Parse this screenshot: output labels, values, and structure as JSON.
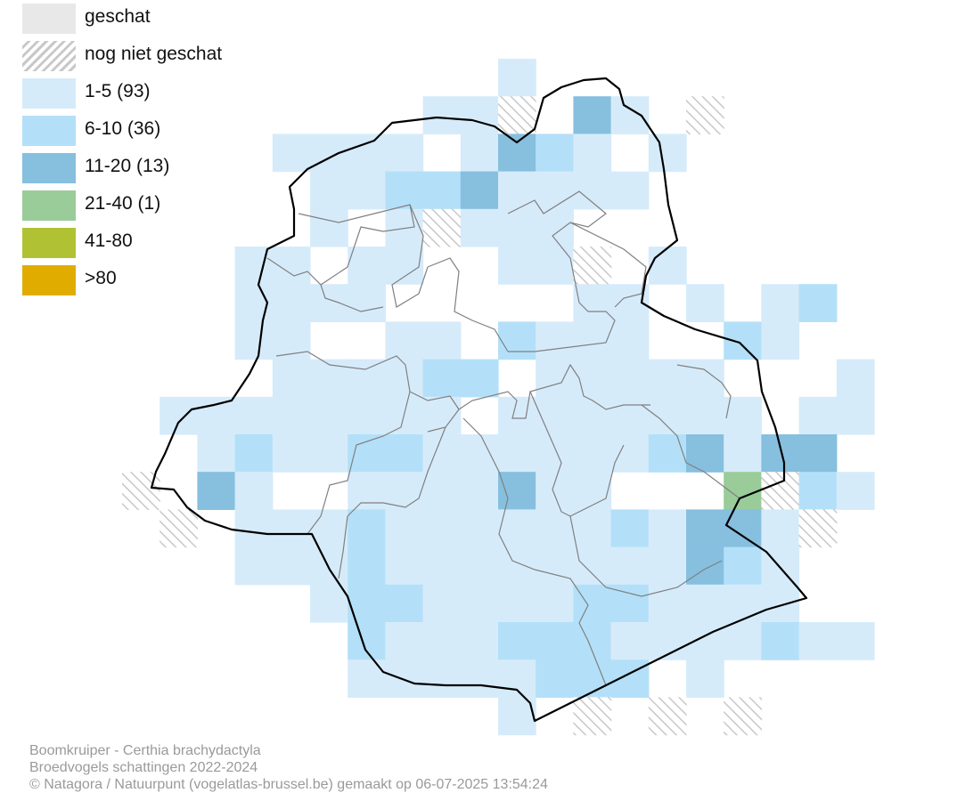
{
  "legend": {
    "items": [
      {
        "label": "geschat",
        "color": "#e8e8e8",
        "style": "solid"
      },
      {
        "label": "nog niet geschat",
        "color": "#c8c8c8",
        "style": "hatched"
      },
      {
        "label": "1-5 (93)",
        "color": "#d6ebfa",
        "style": "solid"
      },
      {
        "label": "6-10 (36)",
        "color": "#b3e0f8",
        "style": "solid"
      },
      {
        "label": "11-20 (13)",
        "color": "#87bfdf",
        "style": "solid"
      },
      {
        "label": "21-40 (1)",
        "color": "#99cc99",
        "style": "solid"
      },
      {
        "label": "41-80",
        "color": "#b0c234",
        "style": "solid"
      },
      {
        "label": ">80",
        "color": "#e1ac00",
        "style": "solid"
      }
    ]
  },
  "footer": {
    "species": "Boomkruiper - Certhia brachydactyla",
    "survey": "Broedvogels schattingen 2022-2024",
    "credit": "© Natagora / Natuurpunt (vogelatlas-brussel.be) gemaakt op 06-07-2025 13:54:24"
  },
  "colors": {
    "outline": "#000000",
    "municipality_border": "#808080",
    "hatch_stroke": "#c8c8c8"
  }
}
